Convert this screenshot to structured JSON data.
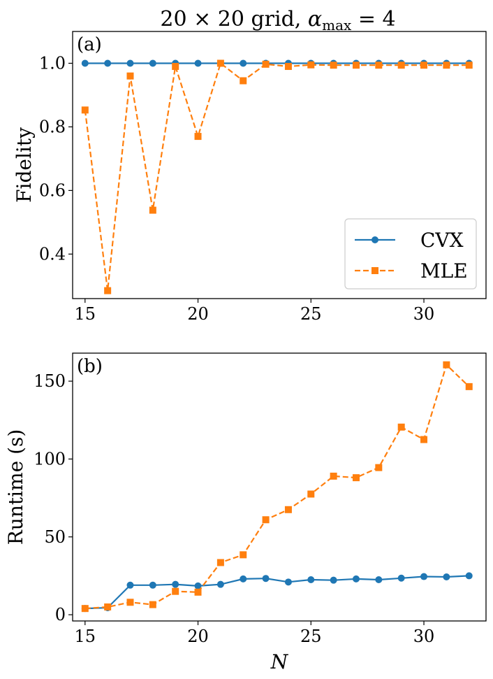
{
  "figure_title": {
    "prefix": "20 × 20 grid, ",
    "alpha": "α",
    "sub": "max",
    "suffix": " = 4"
  },
  "colors": {
    "cvx": "#1f77b4",
    "mle": "#ff7f0e",
    "axes": "#000000",
    "legend_border": "#cccccc"
  },
  "chart_data": [
    {
      "type": "line",
      "panel_label": "(a)",
      "title": "",
      "xlabel": "",
      "ylabel": "Fidelity",
      "xlim": [
        14.45,
        32.75
      ],
      "ylim": [
        0.26,
        1.1
      ],
      "xticks": [
        15,
        20,
        25,
        30
      ],
      "xtick_labels": [
        "15",
        "20",
        "25",
        "30"
      ],
      "yticks": [
        0.4,
        0.6,
        0.8,
        1.0
      ],
      "ytick_labels": [
        "0.4",
        "0.6",
        "0.8",
        "1.0"
      ],
      "grid": false,
      "legend_position": "lower-right",
      "x": [
        15,
        16,
        17,
        18,
        19,
        20,
        21,
        22,
        23,
        24,
        25,
        26,
        27,
        28,
        29,
        30,
        31,
        32
      ],
      "series": [
        {
          "name": "CVX",
          "marker": "circle",
          "linestyle": "solid",
          "values": [
            1.0,
            1.0,
            1.0,
            1.0,
            1.0,
            1.0,
            1.0,
            1.0,
            1.0,
            1.0,
            1.0,
            1.0,
            1.0,
            1.0,
            1.0,
            1.0,
            1.0,
            1.0
          ]
        },
        {
          "name": "MLE",
          "marker": "square",
          "linestyle": "dashed",
          "values": [
            0.853,
            0.285,
            0.96,
            0.538,
            0.99,
            0.77,
            1.0,
            0.945,
            0.997,
            0.99,
            0.995,
            0.994,
            0.994,
            0.994,
            0.994,
            0.994,
            0.994,
            0.994
          ]
        }
      ]
    },
    {
      "type": "line",
      "panel_label": "(b)",
      "title": "",
      "xlabel": "N",
      "ylabel": "Runtime (s)",
      "xlim": [
        14.45,
        32.75
      ],
      "ylim": [
        -4,
        168
      ],
      "xticks": [
        15,
        20,
        25,
        30
      ],
      "xtick_labels": [
        "15",
        "20",
        "25",
        "30"
      ],
      "yticks": [
        0,
        50,
        100,
        150
      ],
      "ytick_labels": [
        "0",
        "50",
        "100",
        "150"
      ],
      "grid": false,
      "x": [
        15,
        16,
        17,
        18,
        19,
        20,
        21,
        22,
        23,
        24,
        25,
        26,
        27,
        28,
        29,
        30,
        31,
        32
      ],
      "series": [
        {
          "name": "CVX",
          "marker": "circle",
          "linestyle": "solid",
          "values": [
            4.0,
            4.5,
            19.0,
            19.0,
            19.5,
            18.5,
            19.5,
            23.0,
            23.3,
            21.0,
            22.5,
            22.2,
            23.0,
            22.5,
            23.5,
            24.5,
            24.3,
            25.0
          ]
        },
        {
          "name": "MLE",
          "marker": "square",
          "linestyle": "dashed",
          "values": [
            4.0,
            5.0,
            8.0,
            6.5,
            15.0,
            14.5,
            33.5,
            38.5,
            61.0,
            67.5,
            77.5,
            89.0,
            88.0,
            94.5,
            120.5,
            112.5,
            160.5,
            146.5
          ]
        }
      ]
    }
  ]
}
